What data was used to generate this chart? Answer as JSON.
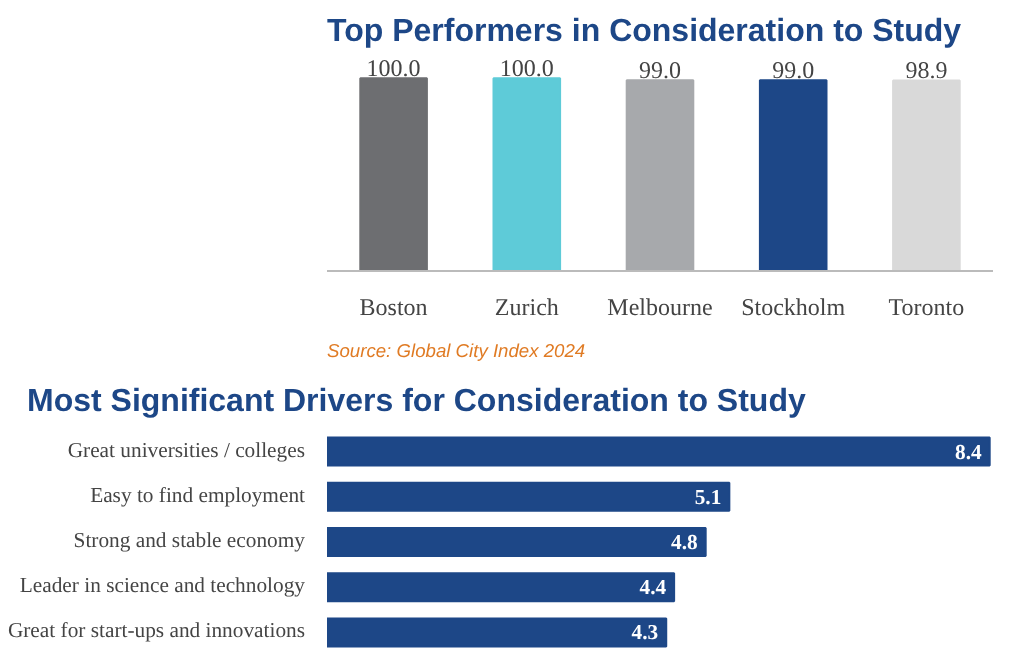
{
  "chart_data": [
    {
      "type": "bar",
      "title": "Top Performers in Consideration to Study",
      "categories": [
        "Boston",
        "Zurich",
        "Melbourne",
        "Stockholm",
        "Toronto"
      ],
      "values": [
        100.0,
        100.0,
        99.0,
        99.0,
        98.9
      ],
      "colors": [
        "#6d6e71",
        "#5ecbd8",
        "#a7a9ac",
        "#1d4787",
        "#d9d9d9"
      ],
      "value_labels": [
        "100.0",
        "100.0",
        "99.0",
        "99.0",
        "98.9"
      ],
      "annotations": [
        "Source: Global City Index 2024"
      ]
    },
    {
      "type": "bar",
      "orientation": "horizontal",
      "title": "Most Significant Drivers for Consideration to Study",
      "categories": [
        "Great universities / colleges",
        "Easy to find employment",
        "Strong and stable economy",
        "Leader in science and technology",
        "Great for start-ups and innovations"
      ],
      "values": [
        8.4,
        5.1,
        4.8,
        4.4,
        4.3
      ],
      "color": "#1d4787",
      "data_labels": true
    }
  ]
}
